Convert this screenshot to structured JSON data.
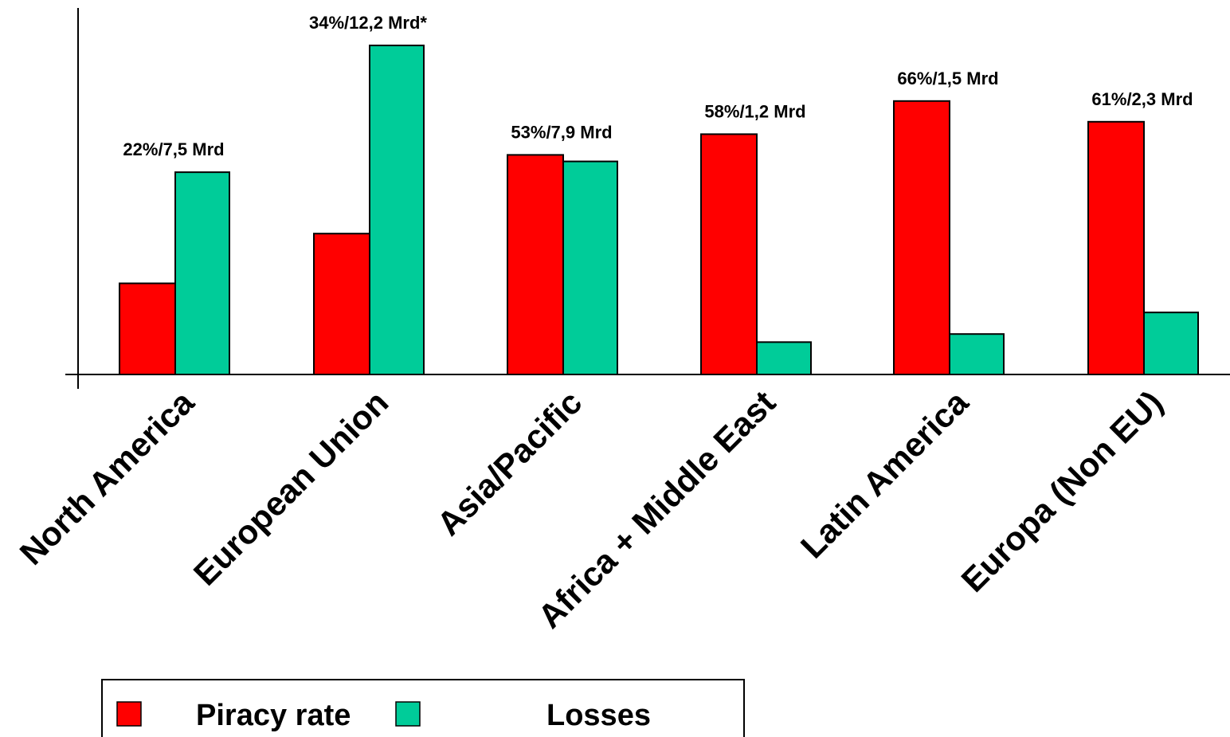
{
  "chart_data": {
    "type": "bar",
    "categories": [
      "North America",
      "European Union",
      "Asia/Pacific",
      "Africa + Middle East",
      "Latin America",
      "Europa (Non EU)"
    ],
    "series": [
      {
        "name": "Piracy rate",
        "color": "#ff0000",
        "values": [
          22,
          34,
          53,
          58,
          66,
          61
        ]
      },
      {
        "name": "Losses",
        "color": "#00cc99",
        "values": [
          7.5,
          12.2,
          7.9,
          1.2,
          1.5,
          2.3
        ]
      }
    ],
    "annotations": [
      "22%/7,5 Mrd",
      "34%/12,2 Mrd*",
      "53%/7,9 Mrd",
      "58%/1,2 Mrd",
      "66%/1,5 Mrd",
      "61%/2,3 Mrd"
    ],
    "title": "",
    "xlabel": "",
    "ylabel": "",
    "legend": {
      "position": "bottom-left",
      "labels": [
        "Piracy rate",
        "Losses"
      ]
    }
  }
}
